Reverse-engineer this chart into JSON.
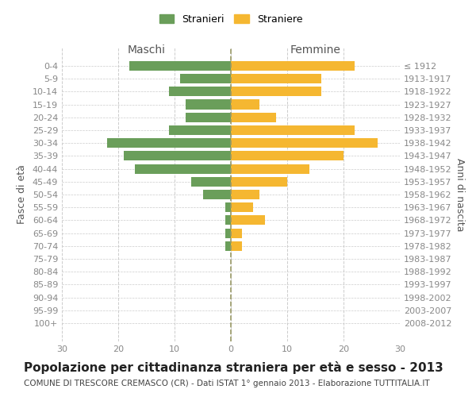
{
  "age_groups": [
    "0-4",
    "5-9",
    "10-14",
    "15-19",
    "20-24",
    "25-29",
    "30-34",
    "35-39",
    "40-44",
    "45-49",
    "50-54",
    "55-59",
    "60-64",
    "65-69",
    "70-74",
    "75-79",
    "80-84",
    "85-89",
    "90-94",
    "95-99",
    "100+"
  ],
  "birth_years": [
    "2008-2012",
    "2003-2007",
    "1998-2002",
    "1993-1997",
    "1988-1992",
    "1983-1987",
    "1978-1982",
    "1973-1977",
    "1968-1972",
    "1963-1967",
    "1958-1962",
    "1953-1957",
    "1948-1952",
    "1943-1947",
    "1938-1942",
    "1933-1937",
    "1928-1932",
    "1923-1927",
    "1918-1922",
    "1913-1917",
    "≤ 1912"
  ],
  "maschi": [
    18,
    9,
    11,
    8,
    8,
    11,
    22,
    19,
    17,
    7,
    5,
    1,
    1,
    1,
    1,
    0,
    0,
    0,
    0,
    0,
    0
  ],
  "femmine": [
    22,
    16,
    16,
    5,
    8,
    22,
    26,
    20,
    14,
    10,
    5,
    4,
    6,
    2,
    2,
    0,
    0,
    0,
    0,
    0,
    0
  ],
  "maschi_color": "#6a9e5a",
  "femmine_color": "#f5b731",
  "title": "Popolazione per cittadinanza straniera per età e sesso - 2013",
  "subtitle": "COMUNE DI TRESCORE CREMASCO (CR) - Dati ISTAT 1° gennaio 2013 - Elaborazione TUTTITALIA.IT",
  "xlabel_left": "Maschi",
  "xlabel_right": "Femmine",
  "ylabel_left": "Fasce di età",
  "ylabel_right": "Anni di nascita",
  "legend_maschi": "Stranieri",
  "legend_femmine": "Straniere",
  "xlim": 30,
  "background_color": "#ffffff",
  "grid_color": "#cccccc",
  "bar_height": 0.75,
  "title_fontsize": 11,
  "subtitle_fontsize": 7.5,
  "tick_color": "#888888",
  "label_color": "#555555"
}
